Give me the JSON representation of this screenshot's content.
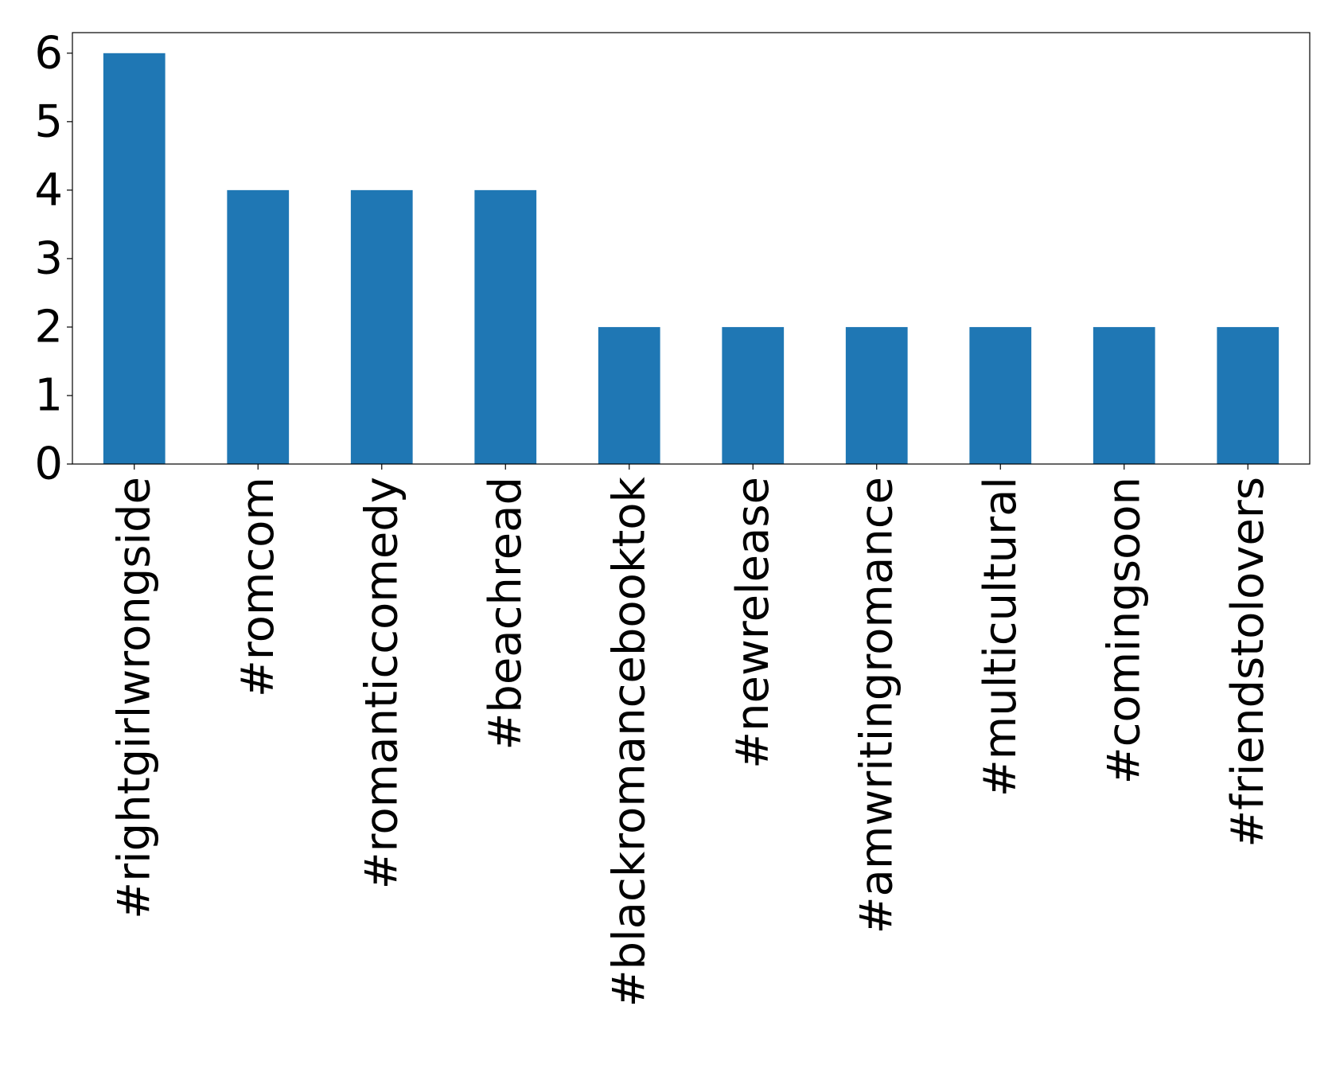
{
  "chart_data": {
    "type": "bar",
    "title": "",
    "xlabel": "",
    "ylabel": "",
    "categories": [
      "#rightgirlwrongside",
      "#romcom",
      "#romanticcomedy",
      "#beachread",
      "#blackromancebooktok",
      "#newrelease",
      "#amwritingromance",
      "#multicultural",
      "#comingsoon",
      "#friendstolovers"
    ],
    "values": [
      6,
      4,
      4,
      4,
      2,
      2,
      2,
      2,
      2,
      2
    ],
    "ylim": [
      0,
      6.3
    ],
    "yticks": [
      "0",
      "1",
      "2",
      "3",
      "4",
      "5",
      "6"
    ],
    "grid": false,
    "legend": "none",
    "bar_color": "#1f77b4"
  }
}
